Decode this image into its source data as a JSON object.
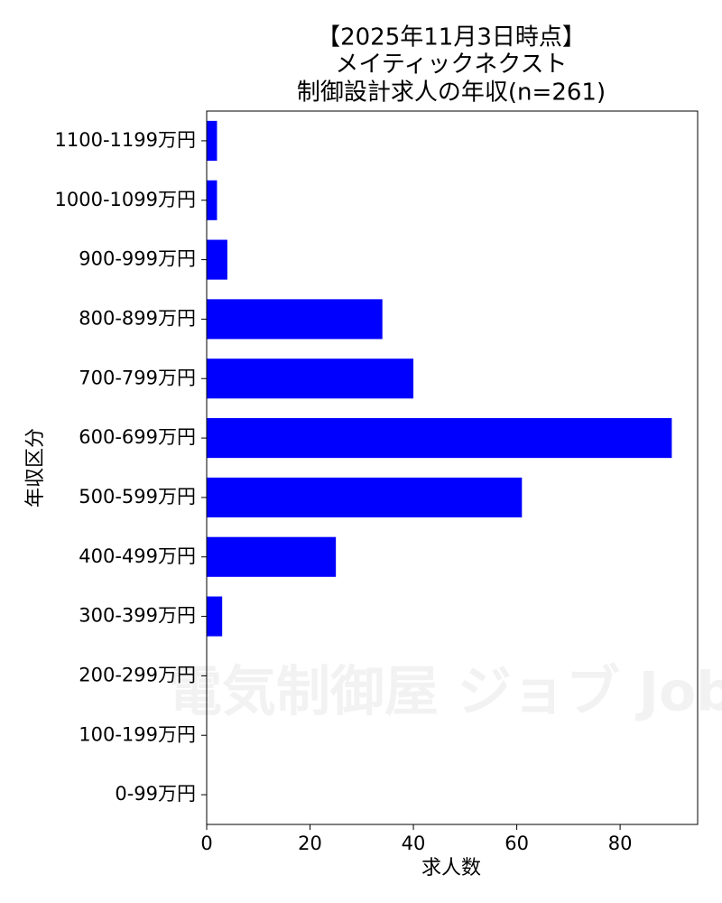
{
  "chart_data": {
    "type": "barh",
    "title": [
      "【2025年11月3日時点】",
      "メイティックネクスト",
      "制御設計求人の年収(n=261)"
    ],
    "x_label": "求人数",
    "y_label": "年収区分",
    "watermark": "電気制御屋 ジョブ Job",
    "categories": [
      "0-99万円",
      "100-199万円",
      "200-299万円",
      "300-399万円",
      "400-499万円",
      "500-599万円",
      "600-699万円",
      "700-799万円",
      "800-899万円",
      "900-999万円",
      "1000-1099万円",
      "1100-1199万円"
    ],
    "values": [
      0,
      0,
      0,
      3,
      25,
      61,
      90,
      40,
      34,
      4,
      2,
      2
    ],
    "color": "#0000ff",
    "xlim": [
      0,
      95
    ],
    "xticks": [
      0,
      20,
      40,
      60,
      80
    ]
  }
}
